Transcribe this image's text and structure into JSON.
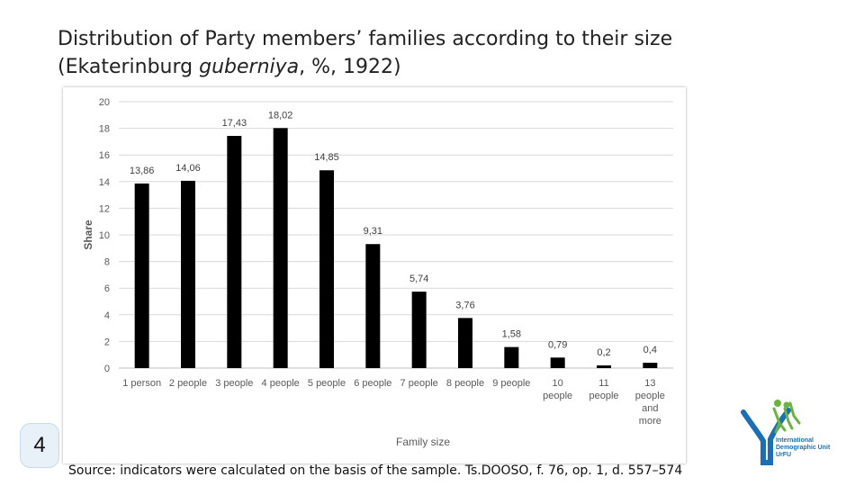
{
  "slide": {
    "title_line1": "Distribution of Party members’ families according to their size",
    "title_line2_a": "(Ekaterinburg ",
    "title_line2_italic": "guberniya",
    "title_line2_b": ", %, 1922)",
    "page_number": "4",
    "source": "Source: indicators were calculated on the basis of the sample. Ts.DOOSO, f. 76, op. 1, d. 557–574",
    "logo": {
      "text_line1": "International",
      "text_line2": "Demographic Unit",
      "text_line3": "UrFU",
      "colors": [
        "#1b6fb3",
        "#6bb33f"
      ]
    }
  },
  "chart_data": {
    "type": "bar",
    "title": "",
    "xlabel": "Family size",
    "ylabel": "Share",
    "ylim": [
      0,
      20
    ],
    "yticks": [
      0,
      2,
      4,
      6,
      8,
      10,
      12,
      14,
      16,
      18,
      20
    ],
    "grid": true,
    "bar_color": "#000000",
    "categories": [
      [
        "1 person"
      ],
      [
        "2 people"
      ],
      [
        "3 people"
      ],
      [
        "4 people"
      ],
      [
        "5 people"
      ],
      [
        "6 people"
      ],
      [
        "7 people"
      ],
      [
        "8 people"
      ],
      [
        "9 people"
      ],
      [
        "10",
        "people"
      ],
      [
        "11",
        "people"
      ],
      [
        "13",
        "people",
        "and",
        "more"
      ]
    ],
    "values": [
      13.86,
      14.06,
      17.43,
      18.02,
      14.85,
      9.31,
      5.74,
      3.76,
      1.58,
      0.79,
      0.2,
      0.4
    ],
    "data_labels": [
      "13,86",
      "14,06",
      "17,43",
      "18,02",
      "14,85",
      "9,31",
      "5,74",
      "3,76",
      "1,58",
      "0,79",
      "0,2",
      "0,4"
    ]
  }
}
